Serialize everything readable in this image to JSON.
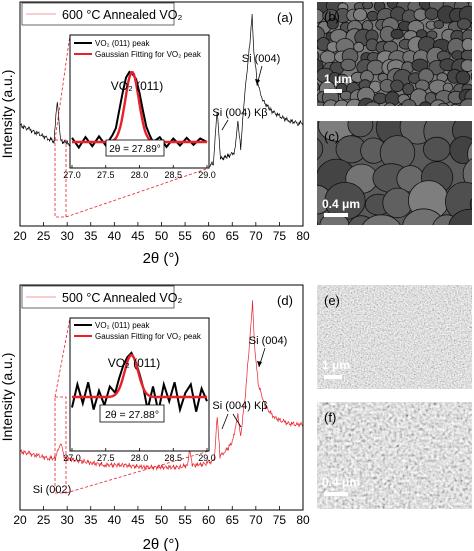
{
  "chart_data": [
    {
      "type": "line",
      "panel_label": "(a)",
      "legend": "600 °C Annealed VO₂",
      "xlabel": "2θ (°)",
      "ylabel": "Intensity (a.u.)",
      "xlim": [
        20,
        80
      ],
      "xticks": [
        "20",
        "25",
        "30",
        "35",
        "40",
        "45",
        "50",
        "55",
        "60",
        "65",
        "70",
        "75",
        "80"
      ],
      "series": [
        {
          "color": "#000000",
          "x": [
            20,
            22,
            24,
            26,
            27.2,
            27.9,
            28.6,
            30,
            33,
            36,
            40,
            43,
            44,
            44.5,
            47,
            50,
            53,
            56,
            58,
            60,
            61,
            61.8,
            62.5,
            64,
            65.5,
            66.2,
            66.8,
            67.6,
            68.3,
            69.0,
            69.2,
            69.6,
            70.3,
            71.5,
            73,
            75,
            77,
            79,
            80
          ],
          "y": [
            0.45,
            0.43,
            0.41,
            0.39,
            0.38,
            0.56,
            0.38,
            0.37,
            0.35,
            0.33,
            0.31,
            0.3,
            0.33,
            0.3,
            0.29,
            0.28,
            0.27,
            0.27,
            0.27,
            0.27,
            0.28,
            0.52,
            0.3,
            0.31,
            0.33,
            0.47,
            0.35,
            0.58,
            0.72,
            0.88,
            0.94,
            0.78,
            0.64,
            0.56,
            0.52,
            0.49,
            0.47,
            0.46,
            0.46
          ]
        }
      ],
      "annotations": [
        "Si (004)",
        "Si (004) Kβ"
      ],
      "inset": {
        "xlim": [
          27.0,
          29.0
        ],
        "xticks": [
          "27.0",
          "27.5",
          "28.0",
          "28.5",
          "29.0"
        ],
        "legend": [
          "VO₂ (011) peak",
          "Gaussian Fitting for VO₂ peak"
        ],
        "label": "VO₂ (011)",
        "fit_label": "2θ = 27.89°",
        "data": {
          "x": [
            27.0,
            27.1,
            27.2,
            27.3,
            27.4,
            27.5,
            27.6,
            27.65,
            27.7,
            27.75,
            27.8,
            27.85,
            27.89,
            27.95,
            28.0,
            28.05,
            28.1,
            28.15,
            28.2,
            28.3,
            28.4,
            28.5,
            28.6,
            28.7,
            28.8,
            28.9,
            29.0
          ],
          "y": [
            0.06,
            -0.08,
            0.07,
            -0.06,
            0.08,
            -0.05,
            0.1,
            0.2,
            0.45,
            0.7,
            0.92,
            1.0,
            0.98,
            0.9,
            0.7,
            0.45,
            0.22,
            0.1,
            0.0,
            0.07,
            -0.07,
            0.05,
            -0.05,
            0.06,
            -0.04,
            0.05,
            0.0
          ]
        },
        "fit": {
          "center": 27.89,
          "sigma": 0.1,
          "amplitude": 1.0
        }
      }
    },
    {
      "type": "line",
      "panel_label": "(d)",
      "legend": "500 °C Annealed VO₂",
      "xlabel": "2θ (°)",
      "ylabel": "Intensity (a.u.)",
      "xlim": [
        20,
        80
      ],
      "xticks": [
        "20",
        "25",
        "30",
        "35",
        "40",
        "45",
        "50",
        "55",
        "60",
        "65",
        "70",
        "75",
        "80"
      ],
      "series": [
        {
          "color": "#e8202a",
          "x": [
            20,
            22,
            24,
            26,
            27.5,
            28.6,
            29.5,
            32,
            35,
            38,
            42,
            46,
            50,
            54,
            55.5,
            56,
            56.5,
            58,
            60,
            61.2,
            61.8,
            62.4,
            63.5,
            65,
            66.2,
            66.8,
            67.8,
            68.5,
            69.1,
            69.3,
            69.7,
            70.5,
            72,
            74,
            76,
            78,
            80
          ],
          "y": [
            0.26,
            0.25,
            0.24,
            0.23,
            0.23,
            0.3,
            0.23,
            0.22,
            0.21,
            0.2,
            0.2,
            0.19,
            0.19,
            0.19,
            0.2,
            0.27,
            0.2,
            0.2,
            0.21,
            0.22,
            0.42,
            0.24,
            0.26,
            0.3,
            0.42,
            0.33,
            0.52,
            0.7,
            0.86,
            0.92,
            0.74,
            0.56,
            0.46,
            0.41,
            0.39,
            0.38,
            0.38
          ]
        }
      ],
      "annotations": [
        "Si (004)",
        "Si (004) Kβ",
        "Si (002)"
      ],
      "inset": {
        "xlim": [
          27.0,
          29.0
        ],
        "xticks": [
          "27.0",
          "27.5",
          "28.0",
          "28.5",
          "29.0"
        ],
        "legend": [
          "VO₂ (011) peak",
          "Gaussian Fitting for VO₂ peak"
        ],
        "label": "VO₂ (011)",
        "fit_label": "2θ = 27.88°",
        "data": {
          "x": [
            27.0,
            27.08,
            27.16,
            27.24,
            27.32,
            27.4,
            27.48,
            27.56,
            27.64,
            27.7,
            27.76,
            27.82,
            27.88,
            27.94,
            28.0,
            28.06,
            28.12,
            28.2,
            28.28,
            28.36,
            28.44,
            28.52,
            28.6,
            28.68,
            28.76,
            28.84,
            28.92,
            29.0
          ],
          "y": [
            -0.25,
            0.3,
            -0.15,
            0.35,
            -0.3,
            0.15,
            -0.2,
            0.25,
            0.1,
            0.45,
            0.75,
            0.95,
            1.05,
            0.85,
            0.55,
            0.2,
            -0.3,
            0.25,
            -0.35,
            0.3,
            -0.1,
            0.35,
            -0.3,
            0.1,
            0.3,
            -0.35,
            0.2,
            -0.1
          ]
        },
        "fit": {
          "center": 27.88,
          "sigma": 0.1,
          "amplitude": 1.0
        }
      }
    }
  ],
  "images": [
    {
      "label": "(b)",
      "scale": "1 μm"
    },
    {
      "label": "(c)",
      "scale": "0.4 μm"
    },
    {
      "label": "(e)",
      "scale": "1 μm"
    },
    {
      "label": "(f)",
      "scale": "0.4 μm"
    }
  ]
}
